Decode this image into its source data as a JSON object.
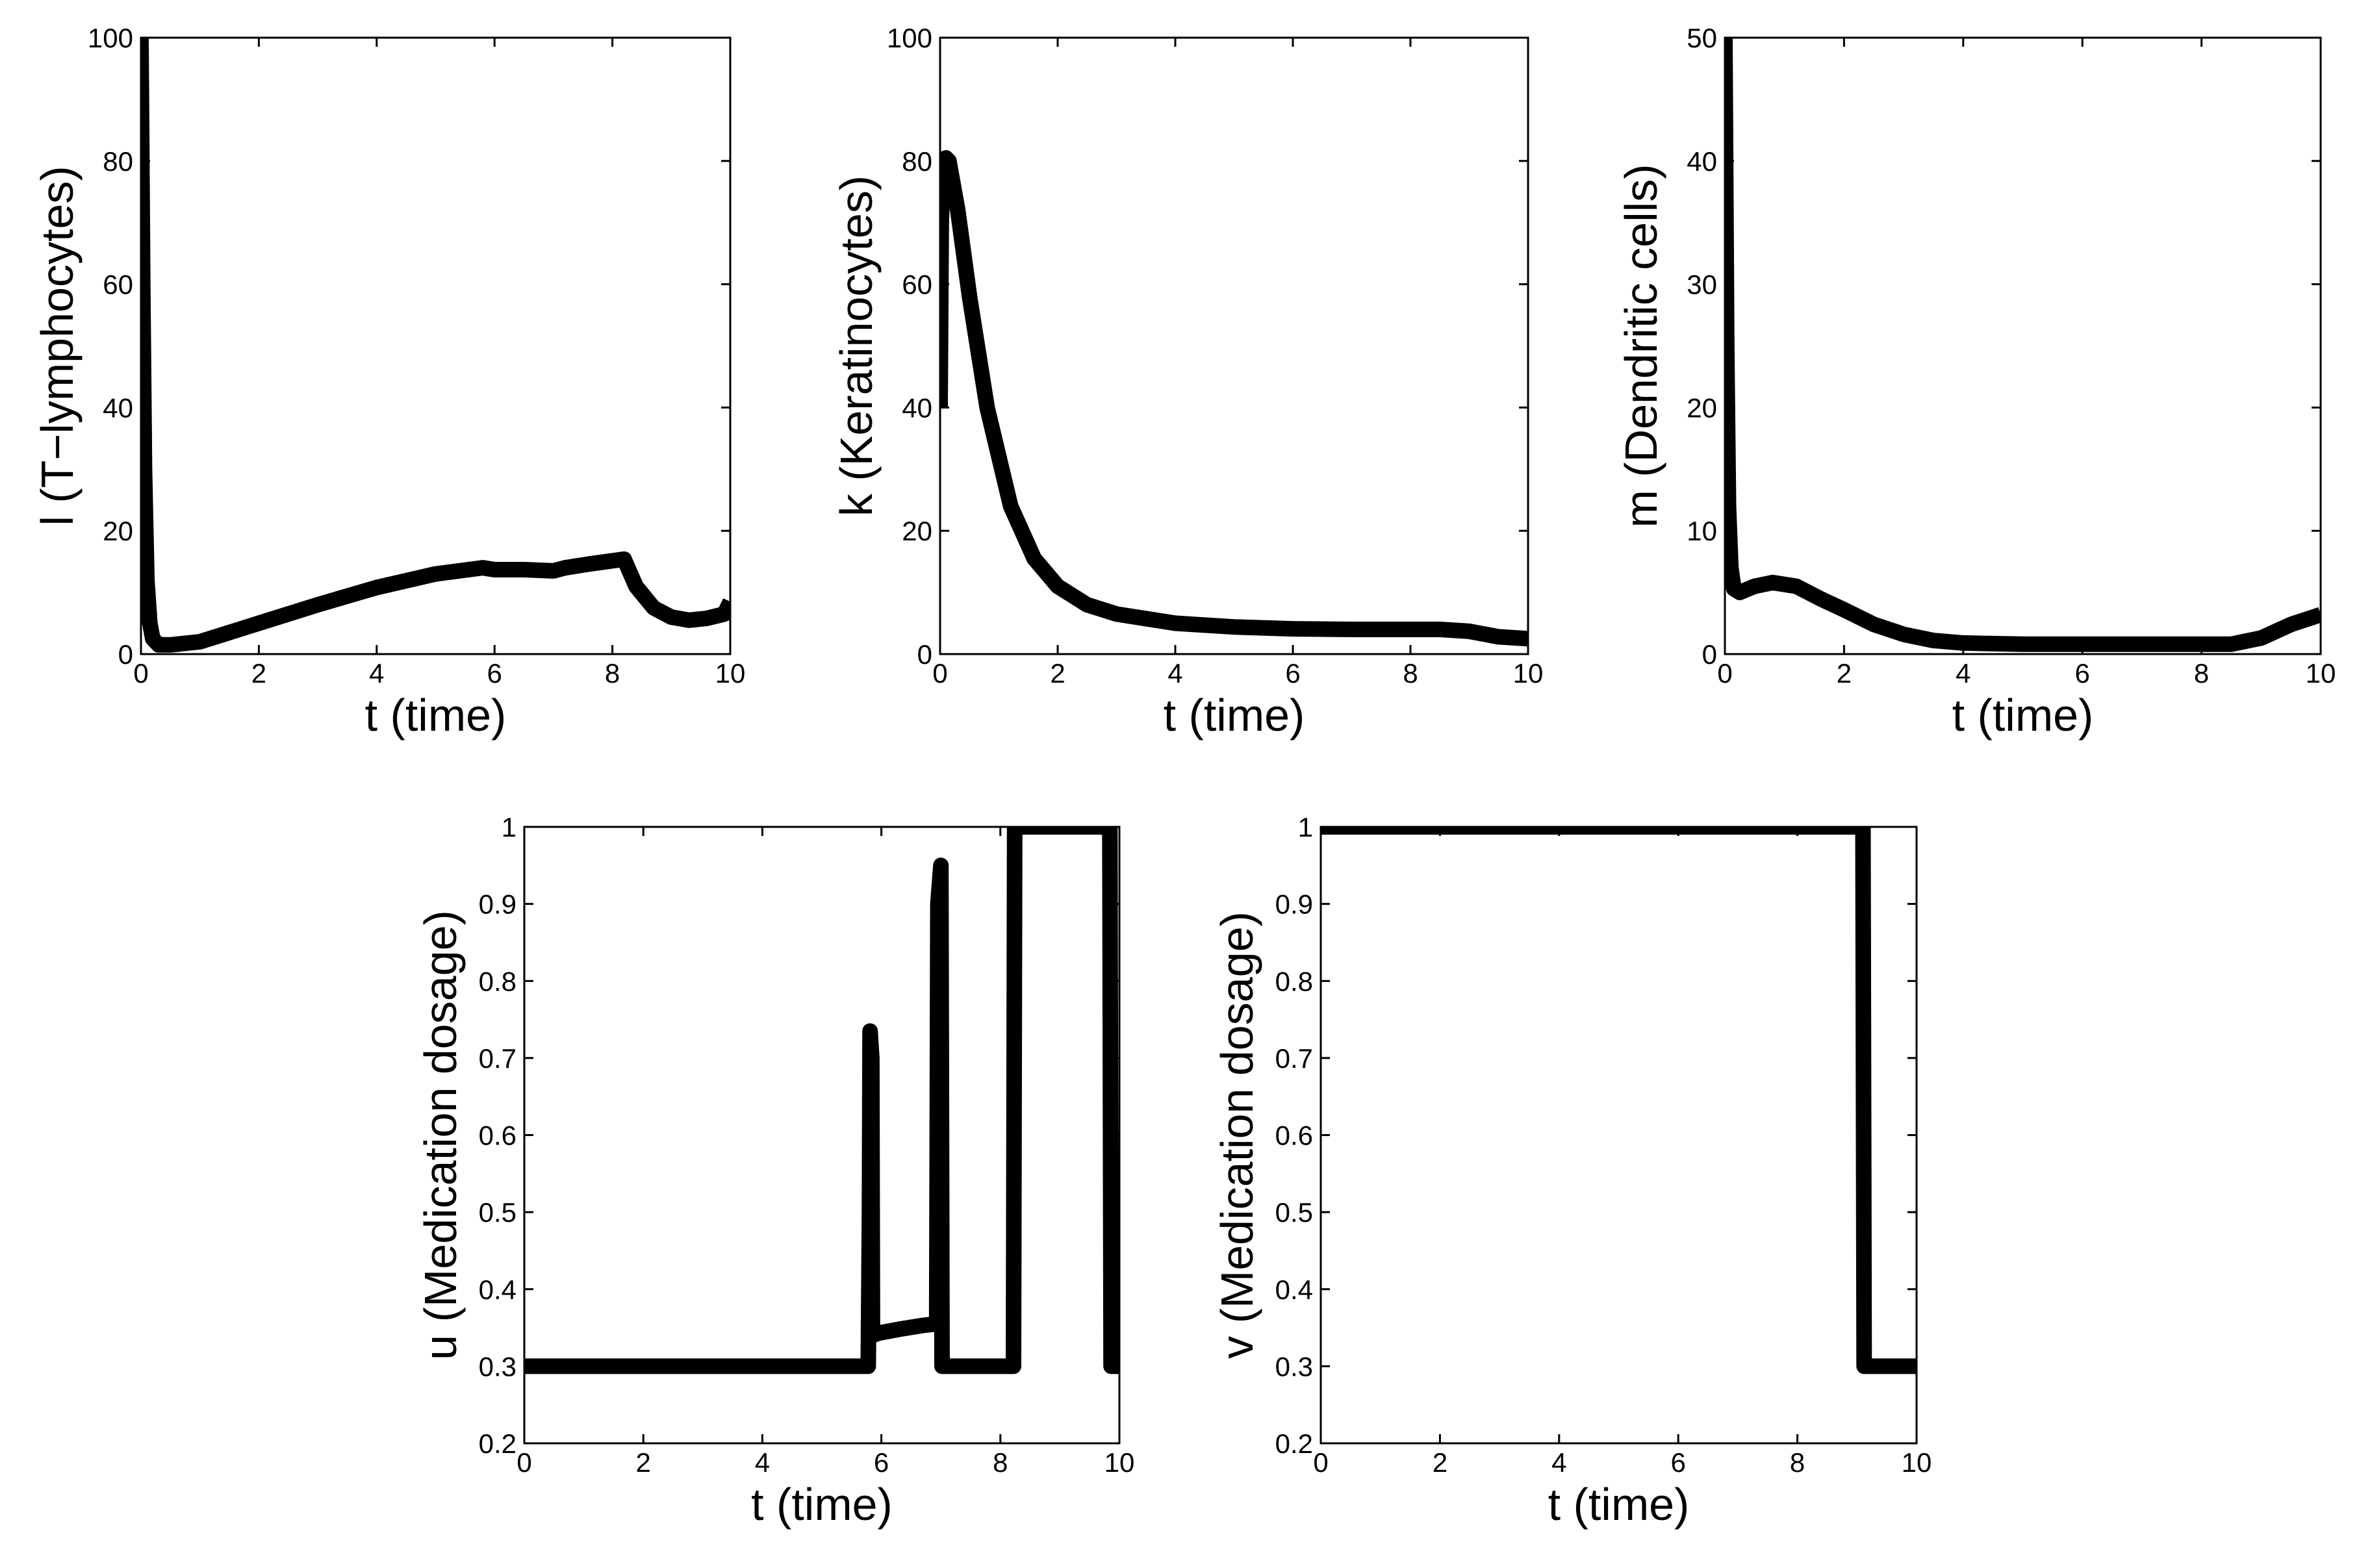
{
  "chart_data": [
    {
      "id": "panel-l",
      "type": "line",
      "title": "",
      "xlabel": "t (time)",
      "ylabel": "l (T−lymphocytes)",
      "xlim": [
        0,
        10
      ],
      "ylim": [
        0,
        100
      ],
      "xticks": [
        0,
        2,
        4,
        6,
        8,
        10
      ],
      "yticks": [
        0,
        20,
        40,
        60,
        80,
        100
      ],
      "series": [
        {
          "name": "l",
          "x": [
            0,
            0.03,
            0.06,
            0.1,
            0.15,
            0.2,
            0.3,
            0.5,
            1,
            2,
            3,
            4,
            5,
            5.8,
            6,
            6.5,
            7,
            7.2,
            7.6,
            8.2,
            8.4,
            8.7,
            9,
            9.3,
            9.6,
            9.9,
            10
          ],
          "y": [
            100,
            60,
            30,
            12,
            5,
            2.5,
            1.5,
            1.5,
            2,
            5,
            8,
            10.8,
            13,
            14,
            13.7,
            13.7,
            13.5,
            14,
            14.6,
            15.4,
            11,
            7.5,
            6,
            5.5,
            5.8,
            6.5,
            8.5
          ]
        }
      ]
    },
    {
      "id": "panel-k",
      "type": "line",
      "title": "",
      "xlabel": "t (time)",
      "ylabel": "k (Keratinocytes)",
      "xlim": [
        0,
        10
      ],
      "ylim": [
        0,
        100
      ],
      "xticks": [
        0,
        2,
        4,
        6,
        8,
        10
      ],
      "yticks": [
        0,
        20,
        40,
        60,
        80,
        100
      ],
      "series": [
        {
          "name": "k",
          "x": [
            0,
            0.02,
            0.05,
            0.1,
            0.15,
            0.3,
            0.5,
            0.8,
            1.2,
            1.6,
            2,
            2.5,
            3,
            4,
            5,
            6,
            7,
            8,
            8.5,
            9,
            9.5,
            10
          ],
          "y": [
            40,
            70,
            78,
            80.5,
            80,
            72,
            58,
            40,
            24,
            15.5,
            11,
            8,
            6.5,
            5,
            4.4,
            4.1,
            4,
            4,
            4,
            3.7,
            2.8,
            2.5
          ]
        }
      ]
    },
    {
      "id": "panel-m",
      "type": "line",
      "title": "",
      "xlabel": "t (time)",
      "ylabel": "m (Dendritic cells)",
      "xlim": [
        0,
        10
      ],
      "ylim": [
        0,
        50
      ],
      "xticks": [
        0,
        2,
        4,
        6,
        8,
        10
      ],
      "yticks": [
        0,
        10,
        20,
        30,
        40,
        50
      ],
      "series": [
        {
          "name": "m",
          "x": [
            0,
            0.03,
            0.06,
            0.1,
            0.15,
            0.25,
            0.5,
            0.8,
            1.2,
            1.6,
            2,
            2.5,
            3,
            3.5,
            4,
            5,
            6,
            7,
            8,
            8.5,
            9,
            9.5,
            10
          ],
          "y": [
            50,
            25,
            12,
            7,
            5.3,
            5,
            5.5,
            5.8,
            5.5,
            4.5,
            3.6,
            2.4,
            1.6,
            1.1,
            0.9,
            0.8,
            0.8,
            0.8,
            0.8,
            0.8,
            1.3,
            2.4,
            3.2
          ]
        }
      ]
    },
    {
      "id": "panel-u",
      "type": "line",
      "title": "",
      "xlabel": "t (time)",
      "ylabel": "u (Medication dosage)",
      "xlim": [
        0,
        10
      ],
      "ylim": [
        0.2,
        1
      ],
      "xticks": [
        0,
        2,
        4,
        6,
        8,
        10
      ],
      "yticks": [
        0.2,
        0.3,
        0.4,
        0.5,
        0.6,
        0.7,
        0.8,
        0.9,
        1
      ],
      "series": [
        {
          "name": "u",
          "x": [
            0,
            5.78,
            5.8,
            5.81,
            5.84,
            5.85,
            5.95,
            6.3,
            6.7,
            6.93,
            6.95,
            7.0,
            7.02,
            7.05,
            8.22,
            8.24,
            9.84,
            9.86,
            10
          ],
          "y": [
            0.3,
            0.3,
            0.5,
            0.735,
            0.7,
            0.34,
            0.343,
            0.348,
            0.353,
            0.355,
            0.9,
            0.95,
            0.3,
            0.3,
            0.3,
            1,
            1,
            0.3,
            0.3
          ]
        }
      ]
    },
    {
      "id": "panel-v",
      "type": "line",
      "title": "",
      "xlabel": "t (time)",
      "ylabel": "v (Medication dosage)",
      "xlim": [
        0,
        10
      ],
      "ylim": [
        0.2,
        1
      ],
      "xticks": [
        0,
        2,
        4,
        6,
        8,
        10
      ],
      "yticks": [
        0.2,
        0.3,
        0.4,
        0.5,
        0.6,
        0.7,
        0.8,
        0.9,
        1
      ],
      "series": [
        {
          "name": "v",
          "x": [
            0,
            9.1,
            9.12,
            10
          ],
          "y": [
            1,
            1,
            0.3,
            0.3
          ]
        }
      ]
    }
  ]
}
